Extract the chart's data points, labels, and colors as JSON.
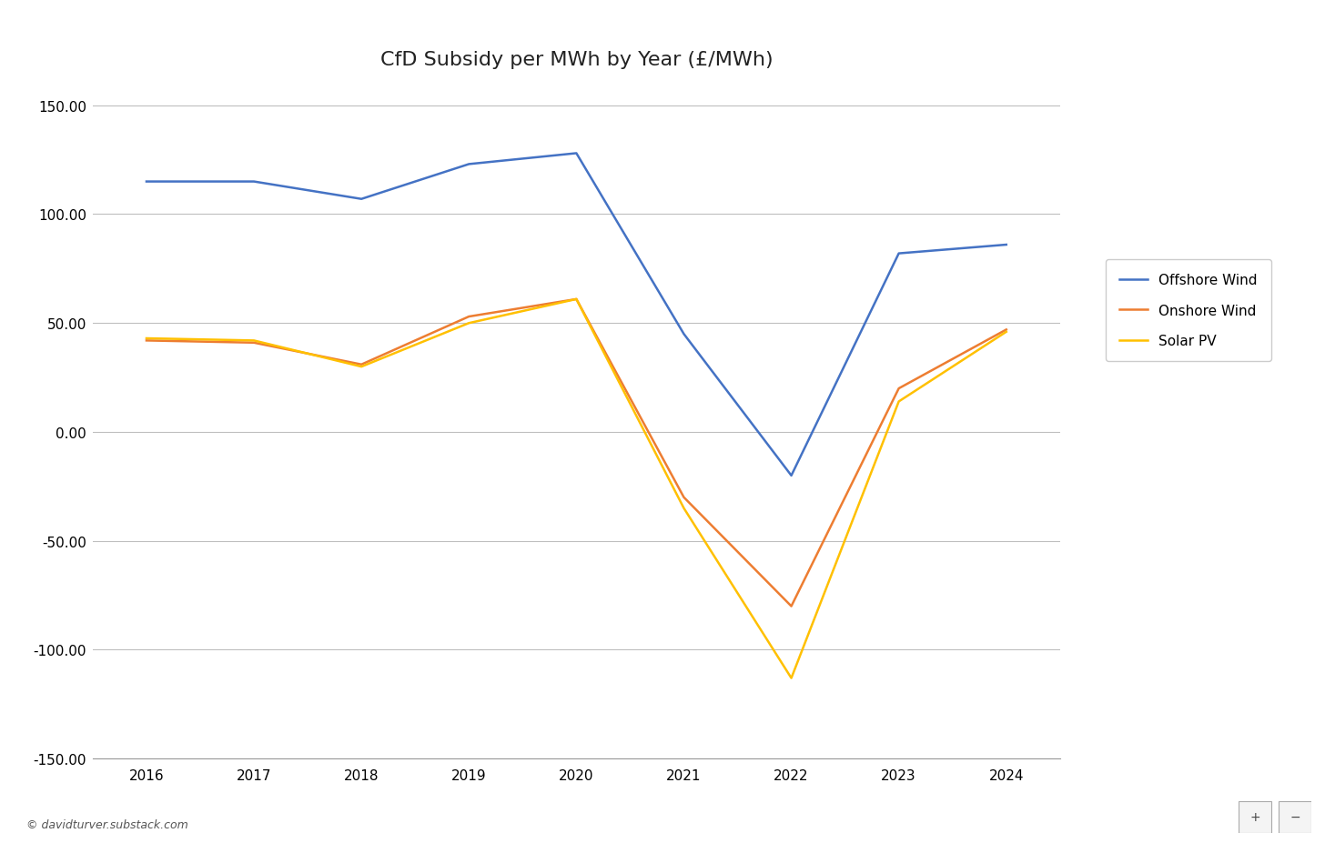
{
  "title": "CfD Subsidy per MWh by Year (£/MWh)",
  "years": [
    2016,
    2017,
    2018,
    2019,
    2020,
    2021,
    2022,
    2023,
    2024
  ],
  "offshore_wind": [
    115.0,
    115.0,
    107.0,
    123.0,
    128.0,
    45.0,
    -20.0,
    82.0,
    86.0
  ],
  "onshore_wind": [
    42.0,
    41.0,
    31.0,
    53.0,
    61.0,
    -30.0,
    -80.0,
    20.0,
    47.0
  ],
  "solar_pv": [
    43.0,
    42.0,
    30.0,
    50.0,
    61.0,
    -35.0,
    -113.0,
    14.0,
    46.0
  ],
  "offshore_color": "#4472C4",
  "onshore_color": "#ED7D31",
  "solar_color": "#FFC000",
  "ylim": [
    -150,
    160
  ],
  "yticks": [
    -150,
    -100,
    -50,
    0,
    50,
    100,
    150
  ],
  "watermark": "© davidturver.substack.com",
  "legend_labels": [
    "Offshore Wind",
    "Onshore Wind",
    "Solar PV"
  ],
  "background_color": "#ffffff",
  "grid_color": "#bfbfbf",
  "line_width": 1.8,
  "title_fontsize": 16,
  "tick_fontsize": 11,
  "legend_fontsize": 11
}
